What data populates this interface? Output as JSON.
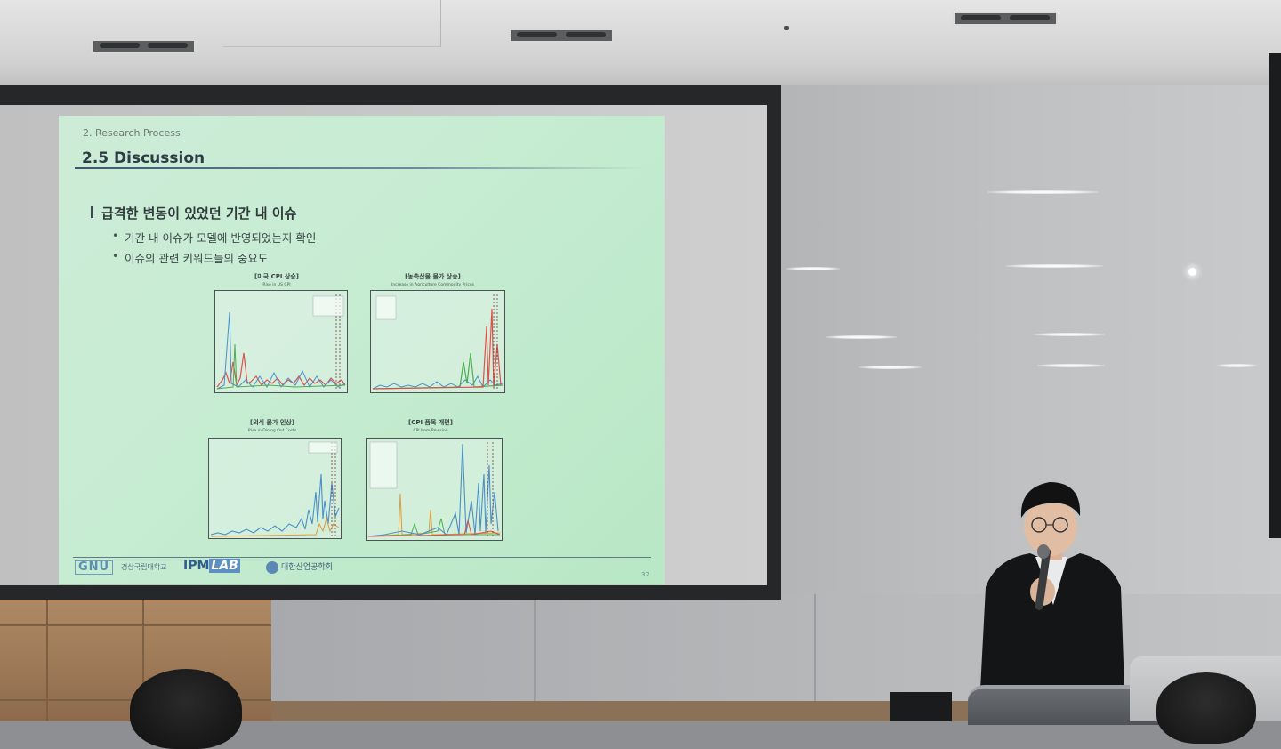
{
  "slide": {
    "breadcrumb": "2. Research Process",
    "title": "2.5 Discussion",
    "main_bullet": "급격한 변동이 있었던 기간 내 이슈",
    "sub_bullets": [
      "기간 내 이슈가 모델에 반영되었는지 확인",
      "이슈의 관련 키워드들의 중요도"
    ],
    "charts": [
      {
        "title": "[미국 CPI 상승]",
        "subtitle": "Rise in US CPI"
      },
      {
        "title": "[농축산물 물가 상승]",
        "subtitle": "Increase in Agriculture Commodity Prices"
      },
      {
        "title": "[외식 물가 인상]",
        "subtitle": "Rise in Dining Out Costs"
      },
      {
        "title": "[CPI 품목 개편]",
        "subtitle": "CPI Item Revision"
      }
    ],
    "footer": {
      "university_logo": "GNU",
      "university_name": "경상국립대학교",
      "lab_logo_a": "IPM",
      "lab_logo_b": "LAB",
      "society_name": "대한산업공학회",
      "page_number": "32"
    }
  },
  "colors": {
    "slide_bg": "#c7ecd3",
    "title_text": "#2c3d44",
    "series_red": "#d9534f",
    "series_blue": "#4a90c8",
    "series_green": "#4caf50",
    "series_orange": "#e09a3a"
  }
}
